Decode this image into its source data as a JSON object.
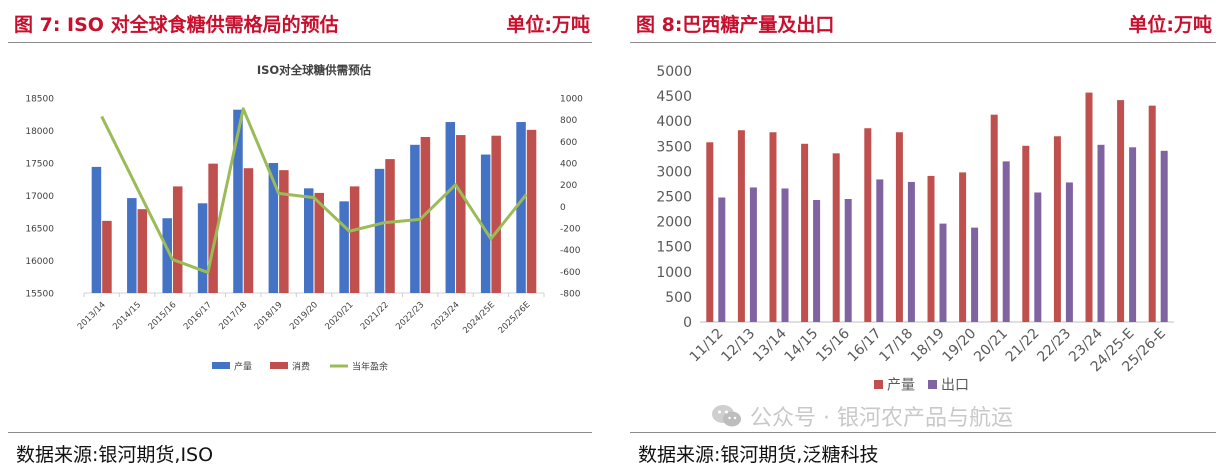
{
  "left": {
    "figure_label": "图 7:   ISO 对全球食糖供需格局的预估",
    "unit_label": "单位:万吨",
    "source": "数据来源:银河期货,ISO",
    "colors": {
      "production": "#4472c4",
      "consumption": "#c0504d",
      "surplus": "#9bbb59",
      "title_red": "#c8102e"
    },
    "chart_data": {
      "type": "bar",
      "title": "ISO对全球糖供需预估",
      "categories": [
        "2013/14",
        "2014/15",
        "2015/16",
        "2016/17",
        "2017/18",
        "2018/19",
        "2019/20",
        "2020/21",
        "2021/22",
        "2022/23",
        "2023/24",
        "2024/25E",
        "2025/26E"
      ],
      "series": [
        {
          "name": "产量",
          "type": "bar",
          "axis": "left",
          "values": [
            17440,
            16960,
            16650,
            16880,
            18320,
            17500,
            17110,
            16910,
            17410,
            17780,
            18130,
            17630,
            18130
          ]
        },
        {
          "name": "消费",
          "type": "bar",
          "axis": "left",
          "values": [
            16610,
            16790,
            17140,
            17490,
            17420,
            17390,
            17040,
            17140,
            17560,
            17900,
            17930,
            17920,
            18010
          ]
        },
        {
          "name": "当年盈余",
          "type": "line",
          "axis": "right",
          "values": [
            830,
            170,
            -490,
            -610,
            900,
            120,
            80,
            -230,
            -150,
            -120,
            200,
            -300,
            110
          ]
        }
      ],
      "ylim_left": [
        15500,
        18500
      ],
      "yticks_left": [
        "15500",
        "16000",
        "16500",
        "17000",
        "17500",
        "18000",
        "18500"
      ],
      "ylim_right": [
        -800,
        1000
      ],
      "yticks_right": [
        "-800",
        "-600",
        "-400",
        "-200",
        "0",
        "200",
        "400",
        "600",
        "800",
        "1000"
      ],
      "legend_position": "bottom",
      "grid": false
    }
  },
  "right": {
    "figure_label": "图 8:巴西糖产量及出口",
    "unit_label": "单位:万吨",
    "source": "数据来源:银河期货,泛糖科技",
    "watermark": "公众号 · 银河农产品与航运",
    "colors": {
      "production": "#c0504d",
      "export": "#8064a2"
    },
    "chart_data": {
      "type": "bar",
      "title": "",
      "categories": [
        "11/12",
        "12/13",
        "13/14",
        "14/15",
        "15/16",
        "16/17",
        "17/18",
        "18/19",
        "19/20",
        "20/21",
        "21/22",
        "22/23",
        "23/24",
        "24/25-E",
        "25/26-E"
      ],
      "series": [
        {
          "name": "产量",
          "values": [
            3580,
            3820,
            3780,
            3550,
            3360,
            3860,
            3780,
            2910,
            2980,
            4130,
            3510,
            3700,
            4570,
            4420,
            4310
          ]
        },
        {
          "name": "出口",
          "values": [
            2480,
            2680,
            2660,
            2430,
            2450,
            2840,
            2790,
            1960,
            1880,
            3200,
            2580,
            2780,
            3530,
            3480,
            3410
          ]
        }
      ],
      "ylim": [
        0,
        5000
      ],
      "yticks": [
        "0",
        "500",
        "1000",
        "1500",
        "2000",
        "2500",
        "3000",
        "3500",
        "4000",
        "4500",
        "5000"
      ],
      "legend_position": "bottom",
      "grid": false
    }
  }
}
